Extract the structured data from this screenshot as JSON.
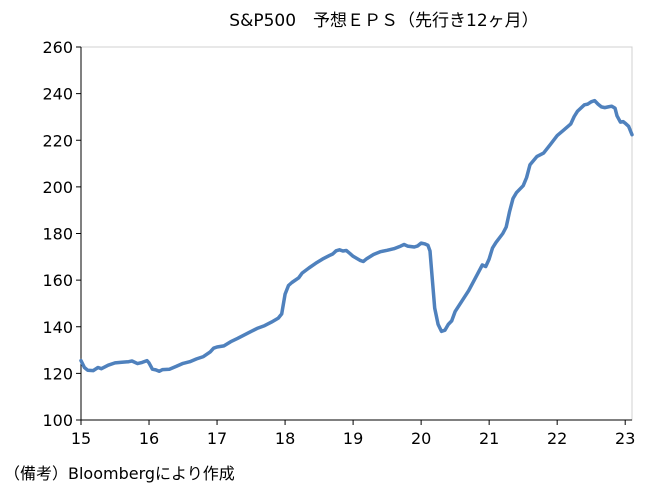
{
  "chart_data": {
    "type": "line",
    "title": "S&P500　予想ＥＰＳ（先行き12ヶ月）",
    "xlabel": "",
    "ylabel": "",
    "xlim": [
      2015,
      2023.1
    ],
    "ylim": [
      100,
      260
    ],
    "y_ticks": [
      100,
      120,
      140,
      160,
      180,
      200,
      220,
      240,
      260
    ],
    "x_ticks": [
      {
        "value": 2015,
        "label": "15"
      },
      {
        "value": 2016,
        "label": "16"
      },
      {
        "value": 2017,
        "label": "17"
      },
      {
        "value": 2018,
        "label": "18"
      },
      {
        "value": 2019,
        "label": "19"
      },
      {
        "value": 2020,
        "label": "20"
      },
      {
        "value": 2021,
        "label": "21"
      },
      {
        "value": 2022,
        "label": "22"
      },
      {
        "value": 2023,
        "label": "23"
      }
    ],
    "grid": false,
    "legend": "none",
    "series": [
      {
        "color": "#4f81bd",
        "points": [
          [
            2015.0,
            125.5
          ],
          [
            2015.05,
            122.5
          ],
          [
            2015.1,
            121.3
          ],
          [
            2015.18,
            121.2
          ],
          [
            2015.25,
            122.5
          ],
          [
            2015.3,
            122.0
          ],
          [
            2015.4,
            123.5
          ],
          [
            2015.5,
            124.5
          ],
          [
            2015.6,
            124.8
          ],
          [
            2015.7,
            125.0
          ],
          [
            2015.75,
            125.3
          ],
          [
            2015.83,
            124.2
          ],
          [
            2015.9,
            124.7
          ],
          [
            2015.97,
            125.5
          ],
          [
            2016.0,
            124.5
          ],
          [
            2016.05,
            121.8
          ],
          [
            2016.1,
            121.5
          ],
          [
            2016.15,
            120.9
          ],
          [
            2016.2,
            121.6
          ],
          [
            2016.3,
            121.8
          ],
          [
            2016.4,
            123.0
          ],
          [
            2016.5,
            124.3
          ],
          [
            2016.6,
            125.0
          ],
          [
            2016.7,
            126.2
          ],
          [
            2016.8,
            127.2
          ],
          [
            2016.9,
            129.2
          ],
          [
            2016.95,
            130.8
          ],
          [
            2017.0,
            131.3
          ],
          [
            2017.1,
            131.8
          ],
          [
            2017.2,
            133.6
          ],
          [
            2017.3,
            135.0
          ],
          [
            2017.4,
            136.5
          ],
          [
            2017.5,
            138.0
          ],
          [
            2017.6,
            139.4
          ],
          [
            2017.7,
            140.5
          ],
          [
            2017.8,
            142.0
          ],
          [
            2017.9,
            143.7
          ],
          [
            2017.95,
            145.5
          ],
          [
            2018.0,
            154.0
          ],
          [
            2018.05,
            157.7
          ],
          [
            2018.1,
            159.0
          ],
          [
            2018.2,
            161.0
          ],
          [
            2018.25,
            163.0
          ],
          [
            2018.35,
            165.2
          ],
          [
            2018.45,
            167.2
          ],
          [
            2018.55,
            169.0
          ],
          [
            2018.65,
            170.5
          ],
          [
            2018.7,
            171.2
          ],
          [
            2018.75,
            172.6
          ],
          [
            2018.8,
            173.0
          ],
          [
            2018.85,
            172.5
          ],
          [
            2018.9,
            172.7
          ],
          [
            2018.95,
            171.5
          ],
          [
            2019.0,
            170.2
          ],
          [
            2019.1,
            168.5
          ],
          [
            2019.15,
            168.0
          ],
          [
            2019.2,
            169.2
          ],
          [
            2019.3,
            171.0
          ],
          [
            2019.4,
            172.2
          ],
          [
            2019.5,
            172.8
          ],
          [
            2019.6,
            173.5
          ],
          [
            2019.7,
            174.6
          ],
          [
            2019.75,
            175.3
          ],
          [
            2019.8,
            174.6
          ],
          [
            2019.9,
            174.2
          ],
          [
            2019.95,
            174.7
          ],
          [
            2020.0,
            175.9
          ],
          [
            2020.05,
            175.6
          ],
          [
            2020.1,
            175.0
          ],
          [
            2020.13,
            172.5
          ],
          [
            2020.16,
            162.0
          ],
          [
            2020.2,
            148.0
          ],
          [
            2020.25,
            141.0
          ],
          [
            2020.3,
            138.0
          ],
          [
            2020.35,
            138.5
          ],
          [
            2020.4,
            141.0
          ],
          [
            2020.45,
            142.5
          ],
          [
            2020.5,
            146.5
          ],
          [
            2020.6,
            151.0
          ],
          [
            2020.7,
            155.5
          ],
          [
            2020.8,
            161.0
          ],
          [
            2020.9,
            166.5
          ],
          [
            2020.95,
            165.8
          ],
          [
            2021.0,
            169.0
          ],
          [
            2021.05,
            173.8
          ],
          [
            2021.1,
            176.2
          ],
          [
            2021.2,
            180.0
          ],
          [
            2021.25,
            182.8
          ],
          [
            2021.3,
            189.5
          ],
          [
            2021.35,
            195.0
          ],
          [
            2021.4,
            197.5
          ],
          [
            2021.5,
            200.5
          ],
          [
            2021.55,
            204.0
          ],
          [
            2021.6,
            209.5
          ],
          [
            2021.7,
            213.0
          ],
          [
            2021.8,
            214.5
          ],
          [
            2021.9,
            218.2
          ],
          [
            2022.0,
            222.0
          ],
          [
            2022.1,
            224.5
          ],
          [
            2022.2,
            227.0
          ],
          [
            2022.25,
            230.2
          ],
          [
            2022.3,
            232.5
          ],
          [
            2022.4,
            235.2
          ],
          [
            2022.45,
            235.5
          ],
          [
            2022.5,
            236.5
          ],
          [
            2022.55,
            237.0
          ],
          [
            2022.6,
            235.5
          ],
          [
            2022.65,
            234.3
          ],
          [
            2022.7,
            234.0
          ],
          [
            2022.75,
            234.3
          ],
          [
            2022.8,
            234.6
          ],
          [
            2022.85,
            233.8
          ],
          [
            2022.88,
            230.5
          ],
          [
            2022.93,
            227.8
          ],
          [
            2022.97,
            228.0
          ],
          [
            2023.0,
            227.3
          ],
          [
            2023.05,
            226.0
          ],
          [
            2023.1,
            222.4
          ]
        ]
      }
    ]
  },
  "footer": {
    "source": "（備考）Bloombergにより作成"
  }
}
